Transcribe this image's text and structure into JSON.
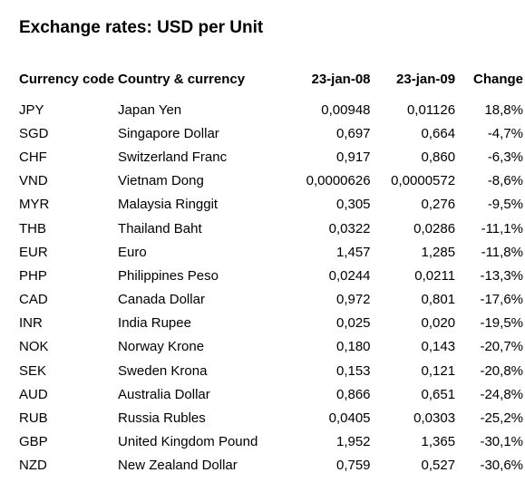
{
  "title": "Exchange rates: USD per Unit",
  "headers": {
    "code": "Currency code",
    "country": "Country & currency",
    "rate_2008": "23-jan-08",
    "rate_2009": "23-jan-09",
    "change": "Change"
  },
  "rows": [
    {
      "code": "JPY",
      "country": "Japan Yen",
      "rate_2008": "0,00948",
      "rate_2009": "0,01126",
      "change": "18,8%"
    },
    {
      "code": "SGD",
      "country": "Singapore Dollar",
      "rate_2008": "0,697",
      "rate_2009": "0,664",
      "change": "-4,7%"
    },
    {
      "code": "CHF",
      "country": "Switzerland Franc",
      "rate_2008": "0,917",
      "rate_2009": "0,860",
      "change": "-6,3%"
    },
    {
      "code": "VND",
      "country": "Vietnam Dong",
      "rate_2008": "0,0000626",
      "rate_2009": "0,0000572",
      "change": "-8,6%"
    },
    {
      "code": "MYR",
      "country": "Malaysia Ringgit",
      "rate_2008": "0,305",
      "rate_2009": "0,276",
      "change": "-9,5%"
    },
    {
      "code": "THB",
      "country": "Thailand Baht",
      "rate_2008": "0,0322",
      "rate_2009": "0,0286",
      "change": "-11,1%"
    },
    {
      "code": "EUR",
      "country": "Euro",
      "rate_2008": "1,457",
      "rate_2009": "1,285",
      "change": "-11,8%"
    },
    {
      "code": "PHP",
      "country": "Philippines Peso",
      "rate_2008": "0,0244",
      "rate_2009": "0,0211",
      "change": "-13,3%"
    },
    {
      "code": "CAD",
      "country": "Canada Dollar",
      "rate_2008": "0,972",
      "rate_2009": "0,801",
      "change": "-17,6%"
    },
    {
      "code": "INR",
      "country": "India Rupee",
      "rate_2008": "0,025",
      "rate_2009": "0,020",
      "change": "-19,5%"
    },
    {
      "code": "NOK",
      "country": "Norway Krone",
      "rate_2008": "0,180",
      "rate_2009": "0,143",
      "change": "-20,7%"
    },
    {
      "code": "SEK",
      "country": "Sweden Krona",
      "rate_2008": "0,153",
      "rate_2009": "0,121",
      "change": "-20,8%"
    },
    {
      "code": "AUD",
      "country": "Australia Dollar",
      "rate_2008": "0,866",
      "rate_2009": "0,651",
      "change": "-24,8%"
    },
    {
      "code": "RUB",
      "country": "Russia Rubles",
      "rate_2008": "0,0405",
      "rate_2009": "0,0303",
      "change": "-25,2%"
    },
    {
      "code": "GBP",
      "country": "United Kingdom Pound",
      "rate_2008": "1,952",
      "rate_2009": "1,365",
      "change": "-30,1%"
    },
    {
      "code": "NZD",
      "country": "New Zealand Dollar",
      "rate_2008": "0,759",
      "rate_2009": "0,527",
      "change": "-30,6%"
    }
  ]
}
